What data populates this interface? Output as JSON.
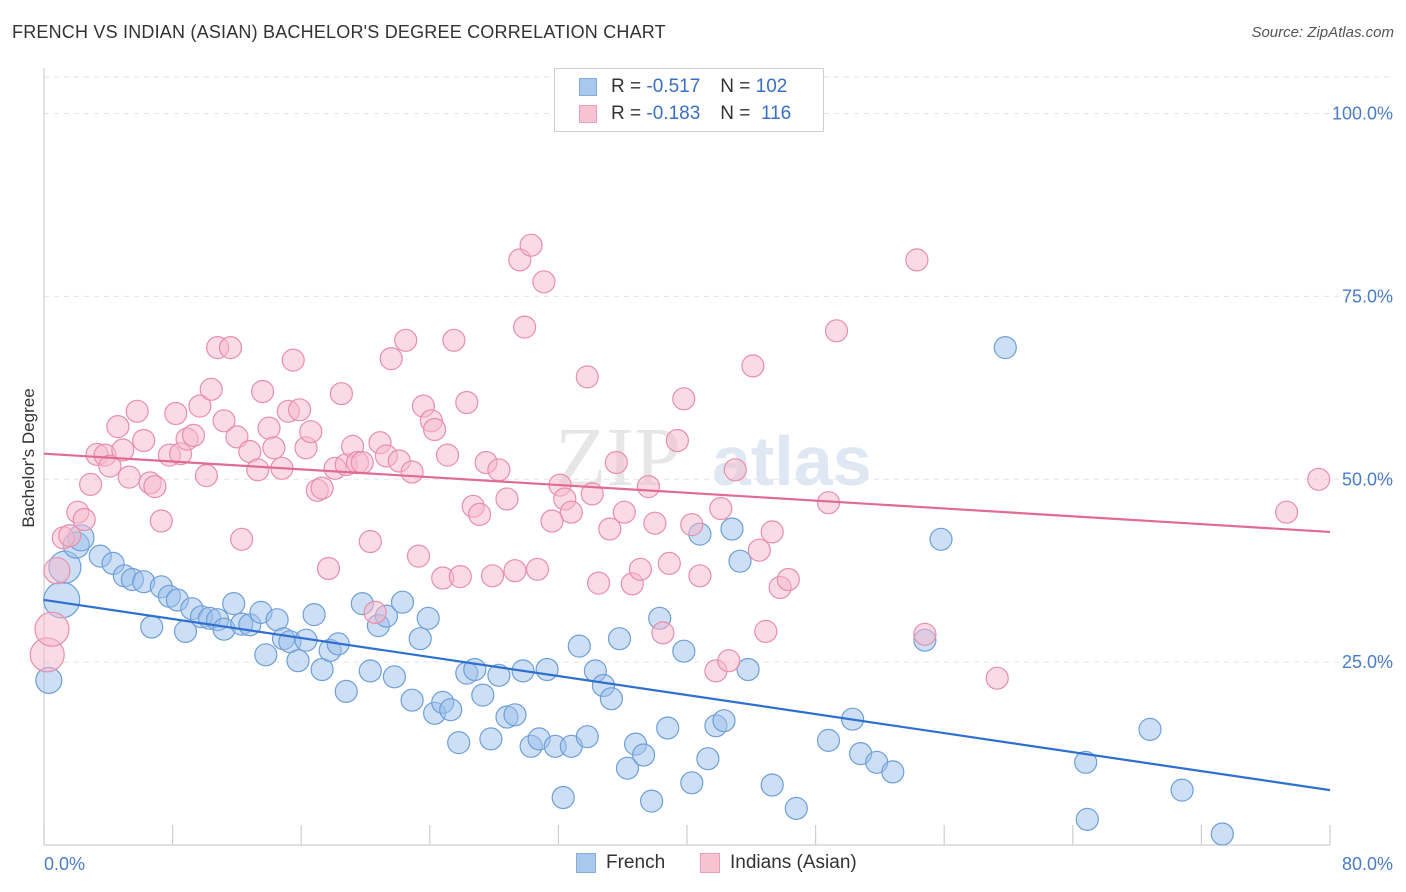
{
  "header": {
    "title": "FRENCH VS INDIAN (ASIAN) BACHELOR'S DEGREE CORRELATION CHART",
    "source": "Source: ZipAtlas.com"
  },
  "watermark": {
    "zip": "ZIP",
    "atlas": "atlas"
  },
  "legend": {
    "rows": [
      {
        "r_label": "R = ",
        "r_value": "-0.517",
        "n_label": "N = ",
        "n_value": "102",
        "color": "#9bbfea",
        "border": "#6f9fd8"
      },
      {
        "r_label": "R = ",
        "r_value": "-0.183",
        "n_label": "N = ",
        "n_value": "116",
        "color": "#f6b8cb",
        "border": "#e88fab"
      }
    ]
  },
  "chart_data": {
    "type": "scatter",
    "title": "FRENCH VS INDIAN (ASIAN) BACHELOR'S DEGREE CORRELATION CHART",
    "xlabel": "",
    "ylabel": "Bachelor's Degree",
    "xlim": [
      0,
      80
    ],
    "ylim": [
      0,
      105
    ],
    "y_ticks": [
      {
        "value": 25,
        "label": "25.0%"
      },
      {
        "value": 50,
        "label": "50.0%"
      },
      {
        "value": 75,
        "label": "75.0%"
      },
      {
        "value": 100,
        "label": "100.0%"
      }
    ],
    "x_tick_labels": [
      {
        "value": 0,
        "label": "0.0%"
      },
      {
        "value": 80,
        "label": "80.0%"
      }
    ],
    "x_minor_ticks": [
      0,
      8,
      16,
      24,
      32,
      40,
      48,
      56,
      64,
      72,
      80
    ],
    "grid": true,
    "legend_position": "top-center",
    "series": [
      {
        "name": "French",
        "color": "#9bbfea",
        "stroke": "#6f9fd8",
        "trend": {
          "x": [
            0,
            80
          ],
          "y": [
            33.5,
            7.5
          ],
          "color": "#2f6fcf"
        },
        "points": [
          [
            0.3,
            22.5,
            13
          ],
          [
            1.1,
            33.5,
            18
          ],
          [
            1.3,
            38,
            16
          ],
          [
            2.0,
            41,
            13
          ],
          [
            2.3,
            42,
            13
          ],
          [
            3.5,
            39.5,
            11
          ],
          [
            4.3,
            38.5,
            11
          ],
          [
            5.0,
            36.8,
            11
          ],
          [
            5.5,
            36.3,
            11
          ],
          [
            6.2,
            36,
            11
          ],
          [
            6.7,
            29.8,
            11
          ],
          [
            7.3,
            35.3,
            11
          ],
          [
            7.8,
            34,
            11
          ],
          [
            8.3,
            33.5,
            11
          ],
          [
            8.8,
            29.2,
            11
          ],
          [
            9.2,
            32.3,
            11
          ],
          [
            9.8,
            31.2,
            11
          ],
          [
            10.3,
            31,
            11
          ],
          [
            10.8,
            30.8,
            11
          ],
          [
            11.2,
            29.5,
            11
          ],
          [
            11.8,
            33,
            11
          ],
          [
            12.3,
            30.2,
            11
          ],
          [
            12.8,
            30.1,
            11
          ],
          [
            13.5,
            31.8,
            11
          ],
          [
            13.8,
            26,
            11
          ],
          [
            14.5,
            30.8,
            11
          ],
          [
            14.9,
            28.2,
            11
          ],
          [
            15.3,
            27.8,
            11
          ],
          [
            15.8,
            25.2,
            11
          ],
          [
            16.3,
            28,
            11
          ],
          [
            16.8,
            31.5,
            11
          ],
          [
            17.3,
            24,
            11
          ],
          [
            17.8,
            26.6,
            11
          ],
          [
            18.3,
            27.5,
            11
          ],
          [
            18.8,
            21,
            11
          ],
          [
            19.8,
            33,
            11
          ],
          [
            20.3,
            23.8,
            11
          ],
          [
            20.8,
            30,
            11
          ],
          [
            21.3,
            31.3,
            11
          ],
          [
            21.8,
            23,
            11
          ],
          [
            22.3,
            33.2,
            11
          ],
          [
            22.9,
            19.8,
            11
          ],
          [
            23.4,
            28.2,
            11
          ],
          [
            23.9,
            31,
            11
          ],
          [
            24.3,
            18,
            11
          ],
          [
            24.8,
            19.5,
            11
          ],
          [
            25.3,
            18.5,
            11
          ],
          [
            25.8,
            14,
            11
          ],
          [
            26.3,
            23.5,
            11
          ],
          [
            26.8,
            24,
            11
          ],
          [
            27.3,
            20.5,
            11
          ],
          [
            27.8,
            14.5,
            11
          ],
          [
            28.3,
            23.2,
            11
          ],
          [
            28.8,
            17.5,
            11
          ],
          [
            29.3,
            17.8,
            11
          ],
          [
            29.8,
            23.8,
            11
          ],
          [
            30.3,
            13.5,
            11
          ],
          [
            30.8,
            14.5,
            11
          ],
          [
            31.3,
            24,
            11
          ],
          [
            31.8,
            13.5,
            11
          ],
          [
            32.3,
            6.5,
            11
          ],
          [
            32.8,
            13.5,
            11
          ],
          [
            33.3,
            27.2,
            11
          ],
          [
            33.8,
            14.8,
            11
          ],
          [
            34.3,
            23.8,
            11
          ],
          [
            34.8,
            21.8,
            11
          ],
          [
            35.3,
            20,
            11
          ],
          [
            35.8,
            28.2,
            11
          ],
          [
            36.3,
            10.5,
            11
          ],
          [
            36.8,
            13.8,
            11
          ],
          [
            37.3,
            12.3,
            11
          ],
          [
            37.8,
            6,
            11
          ],
          [
            38.3,
            31,
            11
          ],
          [
            38.8,
            16,
            11
          ],
          [
            39.8,
            26.5,
            11
          ],
          [
            40.3,
            8.5,
            11
          ],
          [
            40.8,
            42.5,
            11
          ],
          [
            41.3,
            11.8,
            11
          ],
          [
            41.8,
            16.3,
            11
          ],
          [
            42.3,
            17,
            11
          ],
          [
            42.8,
            43.2,
            11
          ],
          [
            43.3,
            38.8,
            11
          ],
          [
            43.8,
            24,
            11
          ],
          [
            45.3,
            8.2,
            11
          ],
          [
            46.8,
            5,
            11
          ],
          [
            48.8,
            14.3,
            11
          ],
          [
            50.3,
            17.2,
            11
          ],
          [
            50.8,
            12.5,
            11
          ],
          [
            51.8,
            11.3,
            11
          ],
          [
            52.8,
            10,
            11
          ],
          [
            54.8,
            28,
            11
          ],
          [
            55.8,
            41.8,
            11
          ],
          [
            59.8,
            68,
            11
          ],
          [
            64.8,
            11.3,
            11
          ],
          [
            64.9,
            3.5,
            11
          ],
          [
            68.8,
            15.8,
            11
          ],
          [
            70.8,
            7.5,
            11
          ],
          [
            73.3,
            1.5,
            11
          ]
        ]
      },
      {
        "name": "Indians (Asian)",
        "color": "#f6b8cb",
        "stroke": "#e88fab",
        "trend": {
          "x": [
            0,
            80
          ],
          "y": [
            53.5,
            42.8
          ],
          "color": "#e06b93"
        },
        "points": [
          [
            0.2,
            26,
            17
          ],
          [
            0.5,
            29.5,
            17
          ],
          [
            0.8,
            37.5,
            13
          ],
          [
            1.2,
            42,
            11
          ],
          [
            1.6,
            42.3,
            11
          ],
          [
            2.1,
            45.5,
            11
          ],
          [
            2.5,
            44.5,
            11
          ],
          [
            2.9,
            49.3,
            11
          ],
          [
            3.3,
            53.4,
            11
          ],
          [
            3.8,
            53.3,
            11
          ],
          [
            4.1,
            51.8,
            11
          ],
          [
            4.6,
            57.2,
            11
          ],
          [
            4.9,
            54,
            11
          ],
          [
            5.3,
            50.3,
            11
          ],
          [
            5.8,
            59.3,
            11
          ],
          [
            6.2,
            55.3,
            11
          ],
          [
            6.6,
            49.5,
            11
          ],
          [
            6.9,
            49,
            11
          ],
          [
            7.3,
            44.3,
            11
          ],
          [
            7.8,
            53.3,
            11
          ],
          [
            8.2,
            59,
            11
          ],
          [
            8.5,
            53.5,
            11
          ],
          [
            8.9,
            55.5,
            11
          ],
          [
            9.3,
            56,
            11
          ],
          [
            9.7,
            60,
            11
          ],
          [
            10.1,
            50.5,
            11
          ],
          [
            10.4,
            62.3,
            11
          ],
          [
            10.8,
            68,
            11
          ],
          [
            11.2,
            58,
            11
          ],
          [
            11.6,
            68,
            11
          ],
          [
            12.0,
            55.8,
            11
          ],
          [
            12.3,
            41.8,
            11
          ],
          [
            12.8,
            53.8,
            11
          ],
          [
            13.3,
            51.3,
            11
          ],
          [
            13.6,
            62,
            11
          ],
          [
            14.0,
            57,
            11
          ],
          [
            14.3,
            54.3,
            11
          ],
          [
            14.8,
            51.5,
            11
          ],
          [
            15.2,
            59.3,
            11
          ],
          [
            15.5,
            66.3,
            11
          ],
          [
            15.9,
            59.5,
            11
          ],
          [
            16.3,
            54.3,
            11
          ],
          [
            16.6,
            56.5,
            11
          ],
          [
            17.0,
            48.5,
            11
          ],
          [
            17.3,
            48.8,
            11
          ],
          [
            17.7,
            37.8,
            11
          ],
          [
            18.1,
            51.5,
            11
          ],
          [
            18.5,
            61.7,
            11
          ],
          [
            18.8,
            52,
            11
          ],
          [
            19.2,
            54.5,
            11
          ],
          [
            19.5,
            52.3,
            11
          ],
          [
            19.8,
            52.3,
            11
          ],
          [
            20.3,
            41.5,
            11
          ],
          [
            20.6,
            31.8,
            11
          ],
          [
            20.9,
            55,
            11
          ],
          [
            21.3,
            53.2,
            11
          ],
          [
            21.6,
            66.5,
            11
          ],
          [
            22.1,
            52.5,
            11
          ],
          [
            22.5,
            69,
            11
          ],
          [
            22.9,
            51,
            11
          ],
          [
            23.3,
            39.5,
            11
          ],
          [
            23.6,
            60,
            11
          ],
          [
            24.1,
            58,
            11
          ],
          [
            24.3,
            56.8,
            11
          ],
          [
            24.8,
            36.5,
            11
          ],
          [
            25.1,
            53.3,
            11
          ],
          [
            25.5,
            69,
            11
          ],
          [
            25.9,
            36.7,
            11
          ],
          [
            26.3,
            60.5,
            11
          ],
          [
            26.7,
            46.3,
            11
          ],
          [
            27.1,
            45.2,
            11
          ],
          [
            27.5,
            52.3,
            11
          ],
          [
            27.9,
            36.8,
            11
          ],
          [
            28.3,
            51.3,
            11
          ],
          [
            28.8,
            47.3,
            11
          ],
          [
            29.3,
            37.5,
            11
          ],
          [
            29.6,
            80,
            11
          ],
          [
            29.9,
            70.8,
            11
          ],
          [
            30.3,
            82,
            11
          ],
          [
            30.7,
            37.7,
            11
          ],
          [
            31.1,
            77,
            11
          ],
          [
            31.6,
            44.3,
            11
          ],
          [
            32.1,
            49.2,
            11
          ],
          [
            32.4,
            47.3,
            11
          ],
          [
            32.8,
            45.5,
            11
          ],
          [
            33.8,
            64,
            11
          ],
          [
            34.1,
            48,
            11
          ],
          [
            34.5,
            35.8,
            11
          ],
          [
            35.2,
            43.2,
            11
          ],
          [
            35.6,
            52.3,
            11
          ],
          [
            36.1,
            45.5,
            11
          ],
          [
            36.6,
            35.7,
            11
          ],
          [
            37.1,
            37.7,
            11
          ],
          [
            37.6,
            49,
            11
          ],
          [
            38.0,
            44,
            11
          ],
          [
            38.5,
            29,
            11
          ],
          [
            38.9,
            38.5,
            11
          ],
          [
            39.4,
            55.3,
            11
          ],
          [
            39.8,
            61,
            11
          ],
          [
            40.3,
            43.8,
            11
          ],
          [
            40.8,
            36.8,
            11
          ],
          [
            41.8,
            23.8,
            11
          ],
          [
            42.1,
            46,
            11
          ],
          [
            42.6,
            25.2,
            11
          ],
          [
            43.0,
            51.3,
            11
          ],
          [
            44.1,
            65.5,
            11
          ],
          [
            44.5,
            40.3,
            11
          ],
          [
            44.9,
            29.2,
            11
          ],
          [
            45.3,
            42.8,
            11
          ],
          [
            45.8,
            35.2,
            11
          ],
          [
            46.3,
            36.3,
            11
          ],
          [
            48.8,
            46.8,
            11
          ],
          [
            49.3,
            70.3,
            11
          ],
          [
            54.3,
            80,
            11
          ],
          [
            54.8,
            28.8,
            11
          ],
          [
            59.3,
            22.8,
            11
          ],
          [
            77.3,
            45.5,
            11
          ],
          [
            79.3,
            50,
            11
          ]
        ]
      }
    ]
  },
  "bottom_legend": {
    "items": [
      {
        "label": "French",
        "color": "#9bbfea",
        "border": "#6f9fd8"
      },
      {
        "label": "Indians (Asian)",
        "color": "#f6b8cb",
        "border": "#e88fab"
      }
    ]
  }
}
